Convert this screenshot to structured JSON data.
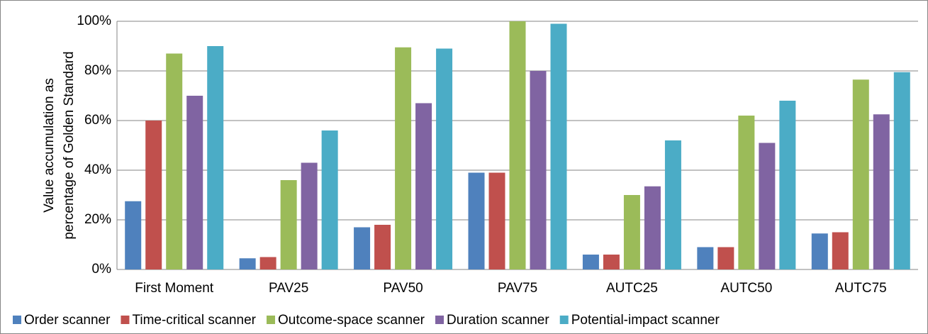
{
  "chart_data": {
    "type": "bar",
    "ylabel": [
      "Value accumulation as",
      "percentage of Golden Standard"
    ],
    "categories": [
      "First Moment",
      "PAV25",
      "PAV50",
      "PAV75",
      "AUTC25",
      "AUTC50",
      "AUTC75"
    ],
    "series": [
      {
        "name": "Order scanner",
        "color": "#4f81bd",
        "values": [
          27.5,
          4.5,
          17,
          39,
          6,
          9,
          14.5
        ]
      },
      {
        "name": "Time-critical scanner",
        "color": "#c0504d",
        "values": [
          60,
          5,
          18,
          39,
          6,
          9,
          15
        ]
      },
      {
        "name": "Outcome-space scanner",
        "color": "#9bbb59",
        "values": [
          87,
          36,
          89.5,
          100,
          30,
          62,
          76.5
        ]
      },
      {
        "name": "Duration scanner",
        "color": "#8064a2",
        "values": [
          70,
          43,
          67,
          80,
          33.5,
          51,
          62.5
        ]
      },
      {
        "name": "Potential-impact scanner",
        "color": "#4bacc6",
        "values": [
          90,
          56,
          89,
          99,
          52,
          68,
          79.5
        ]
      }
    ],
    "ylim": [
      0,
      100
    ],
    "yticks": [
      {
        "value": 0,
        "label": "0%"
      },
      {
        "value": 20,
        "label": "20%"
      },
      {
        "value": 40,
        "label": "40%"
      },
      {
        "value": 60,
        "label": "60%"
      },
      {
        "value": 80,
        "label": "80%"
      },
      {
        "value": 100,
        "label": "100%"
      }
    ],
    "grid": true,
    "legend": "bottom"
  }
}
